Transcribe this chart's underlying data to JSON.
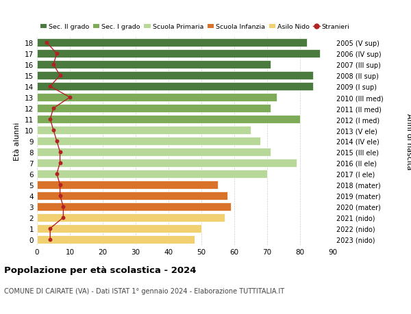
{
  "ages": [
    18,
    17,
    16,
    15,
    14,
    13,
    12,
    11,
    10,
    9,
    8,
    7,
    6,
    5,
    4,
    3,
    2,
    1,
    0
  ],
  "right_labels": [
    "2005 (V sup)",
    "2006 (IV sup)",
    "2007 (III sup)",
    "2008 (II sup)",
    "2009 (I sup)",
    "2010 (III med)",
    "2011 (II med)",
    "2012 (I med)",
    "2013 (V ele)",
    "2014 (IV ele)",
    "2015 (III ele)",
    "2016 (II ele)",
    "2017 (I ele)",
    "2018 (mater)",
    "2019 (mater)",
    "2020 (mater)",
    "2021 (nido)",
    "2022 (nido)",
    "2023 (nido)"
  ],
  "bar_values": [
    82,
    86,
    71,
    84,
    84,
    73,
    71,
    80,
    65,
    68,
    71,
    79,
    70,
    55,
    58,
    59,
    57,
    50,
    48
  ],
  "bar_colors": [
    "#4a7a3d",
    "#4a7a3d",
    "#4a7a3d",
    "#4a7a3d",
    "#4a7a3d",
    "#7dab57",
    "#7dab57",
    "#7dab57",
    "#b8d89a",
    "#b8d89a",
    "#b8d89a",
    "#b8d89a",
    "#b8d89a",
    "#d9732a",
    "#d9732a",
    "#d9732a",
    "#f0d070",
    "#f0d070",
    "#f0d070"
  ],
  "stranieri_values": [
    3,
    6,
    5,
    7,
    4,
    10,
    5,
    4,
    5,
    6,
    7,
    7,
    6,
    7,
    7,
    8,
    8,
    4,
    4
  ],
  "legend_labels": [
    "Sec. II grado",
    "Sec. I grado",
    "Scuola Primaria",
    "Scuola Infanzia",
    "Asilo Nido",
    "Stranieri"
  ],
  "legend_colors": [
    "#4a7a3d",
    "#7dab57",
    "#b8d89a",
    "#d9732a",
    "#f0d070",
    "#b22222"
  ],
  "ylabel_left": "Età alunni",
  "ylabel_right": "Anni di nascita",
  "title": "Popolazione per età scolastica - 2024",
  "subtitle": "COMUNE DI CAIRATE (VA) - Dati ISTAT 1° gennaio 2024 - Elaborazione TUTTITALIA.IT",
  "xlim": [
    0,
    90
  ],
  "background_color": "#ffffff",
  "grid_color": "#cccccc",
  "xticks": [
    0,
    10,
    20,
    30,
    40,
    50,
    60,
    70,
    80,
    90
  ]
}
